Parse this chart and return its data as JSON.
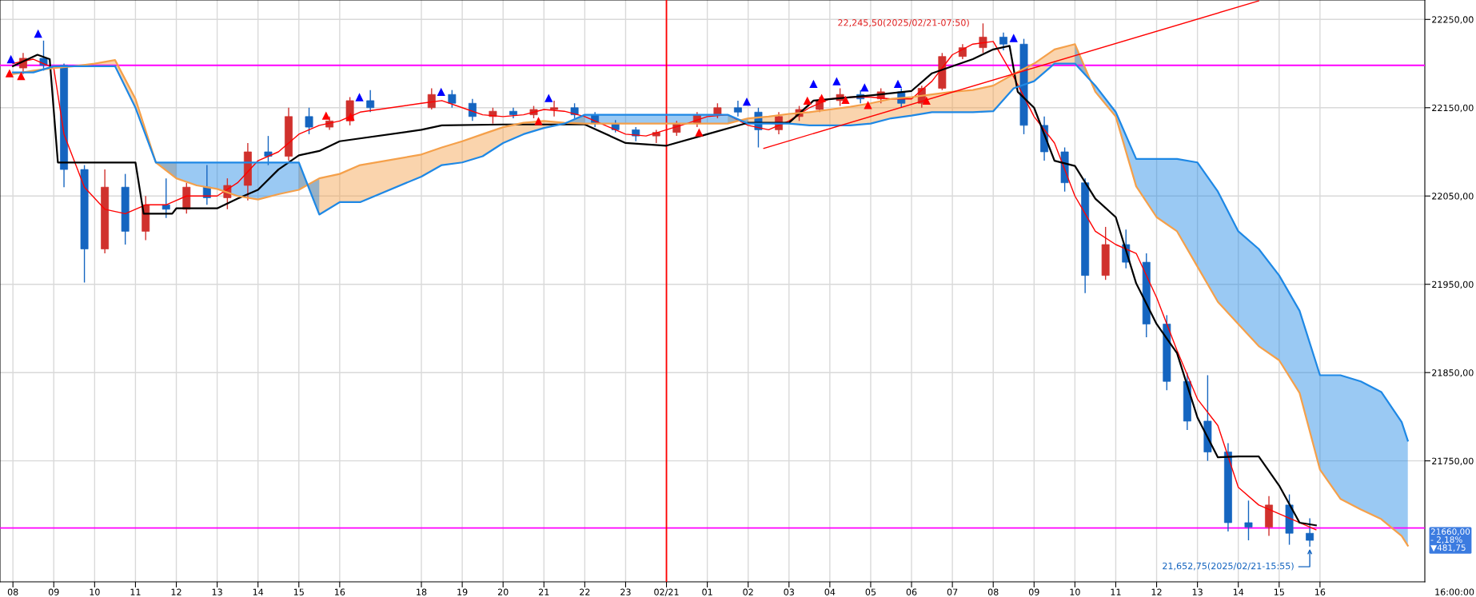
{
  "chart_data": {
    "type": "candlestick",
    "x": [
      "2025-02-20T08:15",
      "2025-02-20T08:45",
      "2025-02-20T09:15",
      "2025-02-20T09:45",
      "2025-02-20T10:15",
      "2025-02-20T10:45",
      "2025-02-20T11:15",
      "2025-02-20T11:45",
      "2025-02-20T12:15",
      "2025-02-20T12:45",
      "2025-02-20T13:15",
      "2025-02-20T13:45",
      "2025-02-20T14:15",
      "2025-02-20T14:45",
      "2025-02-20T15:15",
      "2025-02-20T15:45",
      "2025-02-20T16:15",
      "2025-02-20T16:45",
      "2025-02-20T18:15",
      "2025-02-20T18:45",
      "2025-02-20T19:15",
      "2025-02-20T19:45",
      "2025-02-20T20:15",
      "2025-02-20T20:45",
      "2025-02-20T21:15",
      "2025-02-20T21:45",
      "2025-02-20T22:15",
      "2025-02-20T22:45",
      "2025-02-20T23:15",
      "2025-02-20T23:45",
      "2025-02-21T00:15",
      "2025-02-21T00:45",
      "2025-02-21T01:15",
      "2025-02-21T01:45",
      "2025-02-21T02:15",
      "2025-02-21T02:45",
      "2025-02-21T03:15",
      "2025-02-21T03:45",
      "2025-02-21T04:15",
      "2025-02-21T04:45",
      "2025-02-21T05:15",
      "2025-02-21T05:45",
      "2025-02-21T06:15",
      "2025-02-21T06:45",
      "2025-02-21T07:15",
      "2025-02-21T07:45",
      "2025-02-21T08:15",
      "2025-02-21T08:45",
      "2025-02-21T09:15",
      "2025-02-21T09:45",
      "2025-02-21T10:15",
      "2025-02-21T10:45",
      "2025-02-21T11:15",
      "2025-02-21T11:45",
      "2025-02-21T12:15",
      "2025-02-21T12:45",
      "2025-02-21T13:15",
      "2025-02-21T13:45",
      "2025-02-21T14:15",
      "2025-02-21T14:45",
      "2025-02-21T15:15",
      "2025-02-21T15:45"
    ],
    "ohlc": [
      [
        22195,
        22212,
        22188,
        22206
      ],
      [
        22206,
        22226,
        22192,
        22198
      ],
      [
        22198,
        22200,
        22060,
        22080
      ],
      [
        22080,
        22085,
        21952,
        21990
      ],
      [
        21990,
        22080,
        21985,
        22060
      ],
      [
        22060,
        22075,
        21995,
        22010
      ],
      [
        22010,
        22050,
        22000,
        22040
      ],
      [
        22040,
        22070,
        22025,
        22035
      ],
      [
        22035,
        22065,
        22030,
        22060
      ],
      [
        22060,
        22085,
        22040,
        22048
      ],
      [
        22048,
        22070,
        22035,
        22062
      ],
      [
        22062,
        22110,
        22045,
        22100
      ],
      [
        22100,
        22118,
        22085,
        22095
      ],
      [
        22095,
        22150,
        22090,
        22140
      ],
      [
        22140,
        22150,
        22120,
        22128
      ],
      [
        22128,
        22140,
        22125,
        22135
      ],
      [
        22135,
        22162,
        22130,
        22158
      ],
      [
        22158,
        22170,
        22145,
        22150
      ],
      [
        22150,
        22172,
        22148,
        22165
      ],
      [
        22165,
        22170,
        22150,
        22155
      ],
      [
        22155,
        22160,
        22135,
        22140
      ],
      [
        22140,
        22150,
        22132,
        22146
      ],
      [
        22146,
        22150,
        22138,
        22142
      ],
      [
        22142,
        22152,
        22138,
        22148
      ],
      [
        22148,
        22158,
        22140,
        22150
      ],
      [
        22150,
        22155,
        22138,
        22142
      ],
      [
        22142,
        22145,
        22128,
        22132
      ],
      [
        22132,
        22136,
        22122,
        22125
      ],
      [
        22125,
        22128,
        22112,
        22118
      ],
      [
        22118,
        22125,
        22110,
        22122
      ],
      [
        22122,
        22135,
        22118,
        22132
      ],
      [
        22132,
        22145,
        22128,
        22142
      ],
      [
        22142,
        22155,
        22138,
        22150
      ],
      [
        22150,
        22158,
        22140,
        22145
      ],
      [
        22145,
        22150,
        22105,
        22125
      ],
      [
        22125,
        22145,
        22120,
        22140
      ],
      [
        22140,
        22152,
        22135,
        22148
      ],
      [
        22148,
        22162,
        22145,
        22158
      ],
      [
        22158,
        22172,
        22152,
        22165
      ],
      [
        22165,
        22170,
        22155,
        22160
      ],
      [
        22160,
        22172,
        22155,
        22168
      ],
      [
        22168,
        22172,
        22150,
        22155
      ],
      [
        22155,
        22175,
        22150,
        22172
      ],
      [
        22172,
        22212,
        22170,
        22208
      ],
      [
        22208,
        22222,
        22205,
        22218
      ],
      [
        22218,
        22245.5,
        22212,
        22230
      ],
      [
        22230,
        22235,
        22215,
        22222
      ],
      [
        22222,
        22228,
        22120,
        22130
      ],
      [
        22130,
        22140,
        22090,
        22100
      ],
      [
        22100,
        22105,
        22055,
        22065
      ],
      [
        22065,
        22070,
        21940,
        21960
      ],
      [
        21960,
        22015,
        21955,
        21995
      ],
      [
        21995,
        22012,
        21968,
        21975
      ],
      [
        21975,
        21985,
        21890,
        21905
      ],
      [
        21905,
        21915,
        21830,
        21840
      ],
      [
        21840,
        21850,
        21785,
        21795
      ],
      [
        21795,
        21847,
        21750,
        21760
      ],
      [
        21760,
        21770,
        21670,
        21680
      ],
      [
        21680,
        21705,
        21660,
        21675
      ],
      [
        21675,
        21710,
        21665,
        21700
      ],
      [
        21700,
        21712,
        21655,
        21668
      ],
      [
        21668,
        21685,
        21652.75,
        21660
      ]
    ],
    "colors": [
      "#d0312d",
      "#1565c0",
      "#1565c0",
      "#1565c0",
      "#d0312d",
      "#1565c0",
      "#d0312d",
      "#1565c0",
      "#d0312d",
      "#1565c0",
      "#d0312d",
      "#d0312d",
      "#1565c0",
      "#d0312d",
      "#1565c0",
      "#d0312d",
      "#d0312d",
      "#1565c0",
      "#d0312d",
      "#1565c0",
      "#1565c0",
      "#d0312d",
      "#1565c0",
      "#d0312d",
      "#d0312d",
      "#1565c0",
      "#1565c0",
      "#1565c0",
      "#1565c0",
      "#d0312d",
      "#d0312d",
      "#d0312d",
      "#d0312d",
      "#1565c0",
      "#1565c0",
      "#d0312d",
      "#d0312d",
      "#d0312d",
      "#d0312d",
      "#1565c0",
      "#d0312d",
      "#1565c0",
      "#d0312d",
      "#d0312d",
      "#d0312d",
      "#d0312d",
      "#1565c0",
      "#1565c0",
      "#1565c0",
      "#1565c0",
      "#1565c0",
      "#d0312d",
      "#1565c0",
      "#1565c0",
      "#1565c0",
      "#1565c0",
      "#1565c0",
      "#1565c0",
      "#1565c0",
      "#d0312d",
      "#1565c0",
      "#1565c0"
    ],
    "series": [
      {
        "type": "line",
        "color": "#ff0000",
        "x": [
          "2025-02-20T08:00",
          "2025-02-20T08:30",
          "2025-02-20T09:00",
          "2025-02-20T09:15",
          "2025-02-20T09:45",
          "2025-02-20T10:15",
          "2025-02-20T10:45",
          "2025-02-20T11:15",
          "2025-02-20T11:45",
          "2025-02-20T12:15",
          "2025-02-20T13:00",
          "2025-02-20T13:30",
          "2025-02-20T14:00",
          "2025-02-20T14:30",
          "2025-02-20T15:00",
          "2025-02-20T15:30",
          "2025-02-20T16:00",
          "2025-02-20T16:30",
          "2025-02-20T18:00",
          "2025-02-20T18:30",
          "2025-02-20T19:00",
          "2025-02-20T19:30",
          "2025-02-20T20:00",
          "2025-02-20T20:30",
          "2025-02-20T21:00",
          "2025-02-20T21:30",
          "2025-02-20T22:00",
          "2025-02-20T22:30",
          "2025-02-20T23:00",
          "2025-02-20T23:30",
          "2025-02-21T00:00",
          "2025-02-21T00:30",
          "2025-02-21T01:00",
          "2025-02-21T01:30",
          "2025-02-21T02:00",
          "2025-02-21T02:30",
          "2025-02-21T03:00",
          "2025-02-21T03:30",
          "2025-02-21T04:00",
          "2025-02-21T04:30",
          "2025-02-21T05:00",
          "2025-02-21T05:30",
          "2025-02-21T06:00",
          "2025-02-21T06:30",
          "2025-02-21T07:00",
          "2025-02-21T07:30",
          "2025-02-21T08:00",
          "2025-02-21T08:30",
          "2025-02-21T09:00",
          "2025-02-21T09:30",
          "2025-02-21T10:00",
          "2025-02-21T10:30",
          "2025-02-21T11:00",
          "2025-02-21T11:30",
          "2025-02-21T12:00",
          "2025-02-21T12:30",
          "2025-02-21T13:00",
          "2025-02-21T13:30",
          "2025-02-21T14:00",
          "2025-02-21T14:30",
          "2025-02-21T15:00",
          "2025-02-21T15:30",
          "2025-02-21T15:54"
        ],
        "values": [
          22200,
          22205,
          22195,
          22120,
          22060,
          22035,
          22030,
          22040,
          22040,
          22050,
          22050,
          22065,
          22090,
          22100,
          22120,
          22130,
          22135,
          22145,
          22155,
          22158,
          22150,
          22142,
          22140,
          22142,
          22148,
          22146,
          22140,
          22130,
          22120,
          22118,
          22125,
          22132,
          22140,
          22142,
          22130,
          22125,
          22135,
          22150,
          22160,
          22162,
          22162,
          22160,
          22160,
          22180,
          22210,
          22222,
          22225,
          22185,
          22140,
          22110,
          22050,
          22010,
          21995,
          21985,
          21935,
          21875,
          21820,
          21790,
          21720,
          21700,
          21690,
          21680,
          21672
        ]
      },
      {
        "type": "line",
        "color": "#000000",
        "x": [
          "2025-02-20T08:00",
          "2025-02-20T08:36",
          "2025-02-20T08:54",
          "2025-02-20T09:06",
          "2025-02-20T11:00",
          "2025-02-20T11:12",
          "2025-02-20T11:54",
          "2025-02-20T12:00",
          "2025-02-20T13:00",
          "2025-02-20T13:30",
          "2025-02-20T14:00",
          "2025-02-20T14:30",
          "2025-02-20T15:00",
          "2025-02-20T15:30",
          "2025-02-20T16:00",
          "2025-02-20T18:00",
          "2025-02-20T18:30",
          "2025-02-20T20:00",
          "2025-02-20T22:00",
          "2025-02-20T23:00",
          "2025-02-21T00:00",
          "2025-02-21T01:00",
          "2025-02-21T02:00",
          "2025-02-21T03:00",
          "2025-02-21T03:36",
          "2025-02-21T05:00",
          "2025-02-21T06:00",
          "2025-02-21T06:30",
          "2025-02-21T07:30",
          "2025-02-21T08:00",
          "2025-02-21T08:24",
          "2025-02-21T08:36",
          "2025-02-21T09:00",
          "2025-02-21T09:30",
          "2025-02-21T10:00",
          "2025-02-21T10:30",
          "2025-02-21T11:00",
          "2025-02-21T11:30",
          "2025-02-21T12:00",
          "2025-02-21T12:30",
          "2025-02-21T13:00",
          "2025-02-21T13:30",
          "2025-02-21T14:00",
          "2025-02-21T14:30",
          "2025-02-21T15:00",
          "2025-02-21T15:30",
          "2025-02-21T15:54"
        ],
        "values": [
          22197,
          22210,
          22205,
          22088,
          22088,
          22030,
          22030,
          22036,
          22036,
          22047,
          22057,
          22080,
          22096,
          22101,
          22112,
          22125,
          22130,
          22131,
          22131,
          22110,
          22107,
          22120,
          22133,
          22133,
          22158,
          22164,
          22169,
          22189,
          22205,
          22216,
          22220,
          22168,
          22150,
          22090,
          22084,
          22047,
          22026,
          21951,
          21905,
          21872,
          21799,
          21754,
          21755,
          21755,
          21722,
          21680,
          21677
        ]
      },
      {
        "type": "line",
        "color": "#f5a04a",
        "x": [
          "2025-02-20T08:00",
          "2025-02-20T08:30",
          "2025-02-20T09:00",
          "2025-02-20T09:30",
          "2025-02-20T10:00",
          "2025-02-20T10:30",
          "2025-02-20T11:00",
          "2025-02-20T11:30",
          "2025-02-20T12:00",
          "2025-02-20T12:30",
          "2025-02-20T13:00",
          "2025-02-20T13:30",
          "2025-02-20T14:00",
          "2025-02-20T14:30",
          "2025-02-20T15:00",
          "2025-02-20T15:30",
          "2025-02-20T16:00",
          "2025-02-20T16:30",
          "2025-02-20T18:00",
          "2025-02-20T18:30",
          "2025-02-20T19:00",
          "2025-02-20T19:30",
          "2025-02-20T20:00",
          "2025-02-20T20:30",
          "2025-02-20T21:00",
          "2025-02-20T21:30",
          "2025-02-20T22:00",
          "2025-02-20T22:30",
          "2025-02-20T23:00",
          "2025-02-20T23:30",
          "2025-02-21T00:00",
          "2025-02-21T00:30",
          "2025-02-21T01:00",
          "2025-02-21T01:30",
          "2025-02-21T02:00",
          "2025-02-21T02:30",
          "2025-02-21T03:00",
          "2025-02-21T03:30",
          "2025-02-21T04:00",
          "2025-02-21T04:30",
          "2025-02-21T05:00",
          "2025-02-21T05:30",
          "2025-02-21T06:00",
          "2025-02-21T06:30",
          "2025-02-21T07:00",
          "2025-02-21T07:30",
          "2025-02-21T08:00",
          "2025-02-21T08:30",
          "2025-02-21T09:00",
          "2025-02-21T09:30",
          "2025-02-21T10:00",
          "2025-02-21T10:30",
          "2025-02-21T11:00",
          "2025-02-21T11:30",
          "2025-02-21T12:00",
          "2025-02-21T12:30",
          "2025-02-21T13:00",
          "2025-02-21T13:30",
          "2025-02-21T14:00",
          "2025-02-21T14:30",
          "2025-02-21T15:00",
          "2025-02-21T15:30",
          "2025-02-21T16:00",
          "2025-02-21T16:30",
          "2025-02-21T17:00",
          "2025-02-21T17:30",
          "2025-02-21T18:00",
          "2025-02-21T18:09"
        ],
        "values": [
          22188,
          22192,
          22195,
          22197,
          22200,
          22204,
          22160,
          22088,
          22070,
          22062,
          22058,
          22050,
          22046,
          22052,
          22057,
          22070,
          22075,
          22085,
          22097,
          22105,
          22112,
          22120,
          22128,
          22133,
          22135,
          22133,
          22132,
          22132,
          22132,
          22132,
          22132,
          22132,
          22132,
          22132,
          22138,
          22140,
          22143,
          22145,
          22148,
          22151,
          22155,
          22160,
          22162,
          22165,
          22168,
          22170,
          22175,
          22188,
          22200,
          22216,
          22222,
          22168,
          22140,
          22061,
          22026,
          22010,
          21970,
          21930,
          21905,
          21880,
          21864,
          21827,
          21740,
          21707,
          21695,
          21684,
          21665,
          21654
        ],
        "upper": [
          22188,
          22192,
          22195,
          22197,
          22200,
          22204,
          22160,
          22088,
          22070,
          null,
          null,
          null,
          null,
          null,
          22057,
          22070,
          22075,
          22085,
          22097,
          22105,
          22112,
          22120,
          22128,
          22133,
          22135,
          22133,
          22132,
          null,
          null,
          null,
          null,
          null,
          null,
          22132,
          22138,
          22140,
          22143,
          22145,
          22148,
          22151,
          22155,
          22160,
          22162,
          22165,
          22168,
          22170,
          22175,
          22188,
          22200,
          22216,
          22222,
          22168,
          null,
          null,
          null,
          null,
          null,
          null,
          null,
          null,
          null,
          null,
          null,
          null,
          null,
          null,
          null,
          null
        ],
        "lower": [
          22190,
          22190,
          22197,
          22197,
          22197,
          22197,
          22150,
          22088,
          22088,
          null,
          null,
          null,
          null,
          null,
          22088,
          22029,
          22043,
          22043,
          22072,
          22085,
          22088,
          22095,
          22110,
          22120,
          22127,
          22132,
          22142,
          null,
          null,
          null,
          null,
          null,
          null,
          22142,
          22132,
          22132,
          22132,
          22130,
          22130,
          22130,
          22132,
          22138,
          22141,
          22145,
          22145,
          22145,
          22146,
          22172,
          22180,
          22200,
          22200,
          22175,
          null,
          null,
          null,
          null,
          null,
          null,
          null,
          null,
          null,
          null,
          null,
          null,
          null,
          null,
          null,
          null
        ]
      },
      {
        "type": "line",
        "color": "#1e88e5",
        "x": [
          "2025-02-20T08:00",
          "2025-02-20T08:30",
          "2025-02-20T09:00",
          "2025-02-20T09:30",
          "2025-02-20T10:00",
          "2025-02-20T10:30",
          "2025-02-20T11:00",
          "2025-02-20T11:30",
          "2025-02-20T12:00",
          "2025-02-20T12:30",
          "2025-02-20T13:00",
          "2025-02-20T13:30",
          "2025-02-20T14:00",
          "2025-02-20T14:30",
          "2025-02-20T15:00",
          "2025-02-20T15:30",
          "2025-02-20T16:00",
          "2025-02-20T16:30",
          "2025-02-20T18:00",
          "2025-02-20T18:30",
          "2025-02-20T19:00",
          "2025-02-20T19:30",
          "2025-02-20T20:00",
          "2025-02-20T20:30",
          "2025-02-20T21:00",
          "2025-02-20T21:30",
          "2025-02-20T22:00",
          "2025-02-20T22:30",
          "2025-02-20T23:00",
          "2025-02-20T23:30",
          "2025-02-21T00:00",
          "2025-02-21T00:30",
          "2025-02-21T01:00",
          "2025-02-21T01:30",
          "2025-02-21T02:00",
          "2025-02-21T02:30",
          "2025-02-21T03:00",
          "2025-02-21T03:30",
          "2025-02-21T04:00",
          "2025-02-21T04:30",
          "2025-02-21T05:00",
          "2025-02-21T05:30",
          "2025-02-21T06:00",
          "2025-02-21T06:30",
          "2025-02-21T07:00",
          "2025-02-21T07:30",
          "2025-02-21T08:00",
          "2025-02-21T08:30",
          "2025-02-21T09:00",
          "2025-02-21T09:30",
          "2025-02-21T10:00",
          "2025-02-21T10:30",
          "2025-02-21T11:00",
          "2025-02-21T11:30",
          "2025-02-21T12:00",
          "2025-02-21T12:30",
          "2025-02-21T13:00",
          "2025-02-21T13:30",
          "2025-02-21T14:00",
          "2025-02-21T14:30",
          "2025-02-21T15:00",
          "2025-02-21T15:30",
          "2025-02-21T16:00",
          "2025-02-21T16:30",
          "2025-02-21T17:00",
          "2025-02-21T17:30",
          "2025-02-21T18:00",
          "2025-02-21T18:09"
        ],
        "values": [
          22190,
          22190,
          22197,
          22197,
          22197,
          22197,
          22150,
          22088,
          22088,
          22088,
          22088,
          22088,
          22088,
          22088,
          22088,
          22029,
          22043,
          22043,
          22072,
          22085,
          22088,
          22095,
          22110,
          22120,
          22127,
          22132,
          22142,
          22142,
          22142,
          22142,
          22142,
          22142,
          22142,
          22142,
          22132,
          22132,
          22132,
          22130,
          22130,
          22130,
          22132,
          22138,
          22141,
          22145,
          22145,
          22145,
          22146,
          22172,
          22180,
          22200,
          22200,
          22175,
          22145,
          22092,
          22092,
          22092,
          22088,
          22055,
          22010,
          21990,
          21960,
          21920,
          21847,
          21847,
          21840,
          21828,
          21794,
          21773
        ],
        "upper": [
          22190,
          22190,
          22197,
          22197,
          null,
          null,
          null,
          22088,
          22088,
          22088,
          22088,
          22088,
          22088,
          22088,
          22088,
          22029,
          null,
          null,
          null,
          null,
          null,
          null,
          null,
          null,
          null,
          22132,
          22142,
          22142,
          22142,
          22142,
          22142,
          22142,
          22142,
          22142,
          22132,
          null,
          null,
          null,
          null,
          null,
          null,
          null,
          null,
          null,
          null,
          null,
          null,
          null,
          null,
          null,
          22200,
          22175,
          22145,
          22092,
          22092,
          22092,
          22088,
          22055,
          22010,
          21990,
          21960,
          21920,
          21847,
          21847,
          21840,
          21828,
          21794,
          21773
        ],
        "lower": [
          22188,
          22192,
          22195,
          22197,
          null,
          null,
          null,
          22088,
          22070,
          22062,
          22058,
          22050,
          22046,
          22052,
          22057,
          22070,
          null,
          null,
          null,
          null,
          null,
          null,
          null,
          null,
          null,
          22133,
          22132,
          22132,
          22132,
          22132,
          22132,
          22132,
          22132,
          22132,
          22138,
          null,
          null,
          null,
          null,
          null,
          null,
          null,
          null,
          null,
          null,
          null,
          null,
          null,
          null,
          null,
          22222,
          22168,
          22140,
          22061,
          22026,
          22010,
          21970,
          21930,
          21905,
          21880,
          21864,
          21827,
          21740,
          21707,
          21695,
          21684,
          21665,
          21654
        ]
      },
      {
        "type": "line",
        "color": "#ff0000",
        "x": [
          "2025-02-21T02:23",
          "2025-02-21T14:30"
        ],
        "values": [
          22104,
          22271
        ]
      },
      {
        "type": "scatter",
        "color": "#ff0000",
        "marker": "triangle",
        "x": [
          "2025-02-20T07:55",
          "2025-02-20T08:12",
          "2025-02-20T15:40",
          "2025-02-20T16:16",
          "2025-02-20T20:52",
          "2025-02-21T00:48",
          "2025-02-21T03:27",
          "2025-02-21T03:48",
          "2025-02-21T04:23",
          "2025-02-21T04:56",
          "2025-02-21T06:22"
        ],
        "values": [
          22189,
          22186,
          22141,
          22140,
          22135,
          22122,
          22158,
          22161,
          22159,
          22153,
          22158
        ]
      },
      {
        "type": "scatter",
        "color": "#0000ff",
        "marker": "triangle",
        "x": [
          "2025-02-20T07:57",
          "2025-02-20T08:37",
          "2025-02-20T16:29",
          "2025-02-20T18:29",
          "2025-02-20T21:07",
          "2025-02-21T01:58",
          "2025-02-21T03:36",
          "2025-02-21T04:10",
          "2025-02-21T04:51",
          "2025-02-21T05:40",
          "2025-02-21T08:30"
        ],
        "values": [
          22205,
          22234,
          22162,
          22168,
          22161,
          22157,
          22177,
          22180,
          22173,
          22177,
          22229
        ]
      }
    ],
    "xlim": [
      "2025-02-20T07:41",
      "2025-02-21T18:34"
    ],
    "xticks": [
      {
        "value": "2025-02-20T08:00",
        "label": "08"
      },
      {
        "value": "2025-02-20T09:00",
        "label": "09"
      },
      {
        "value": "2025-02-20T10:00",
        "label": "10"
      },
      {
        "value": "2025-02-20T11:00",
        "label": "11"
      },
      {
        "value": "2025-02-20T12:00",
        "label": "12"
      },
      {
        "value": "2025-02-20T13:00",
        "label": "13"
      },
      {
        "value": "2025-02-20T14:00",
        "label": "14"
      },
      {
        "value": "2025-02-20T15:00",
        "label": "15"
      },
      {
        "value": "2025-02-20T16:00",
        "label": "16"
      },
      {
        "value": "2025-02-20T18:00",
        "label": "18"
      },
      {
        "value": "2025-02-20T19:00",
        "label": "19"
      },
      {
        "value": "2025-02-20T20:00",
        "label": "20"
      },
      {
        "value": "2025-02-20T21:00",
        "label": "21"
      },
      {
        "value": "2025-02-20T22:00",
        "label": "22"
      },
      {
        "value": "2025-02-20T23:00",
        "label": "23"
      },
      {
        "value": "2025-02-21T00:00",
        "label": "02/21"
      },
      {
        "value": "2025-02-21T01:00",
        "label": "01"
      },
      {
        "value": "2025-02-21T02:00",
        "label": "02"
      },
      {
        "value": "2025-02-21T03:00",
        "label": "03"
      },
      {
        "value": "2025-02-21T04:00",
        "label": "04"
      },
      {
        "value": "2025-02-21T05:00",
        "label": "05"
      },
      {
        "value": "2025-02-21T06:00",
        "label": "06"
      },
      {
        "value": "2025-02-21T07:00",
        "label": "07"
      },
      {
        "value": "2025-02-21T08:00",
        "label": "08"
      },
      {
        "value": "2025-02-21T09:00",
        "label": "09"
      },
      {
        "value": "2025-02-21T10:00",
        "label": "10"
      },
      {
        "value": "2025-02-21T11:00",
        "label": "11"
      },
      {
        "value": "2025-02-21T12:00",
        "label": "12"
      },
      {
        "value": "2025-02-21T13:00",
        "label": "13"
      },
      {
        "value": "2025-02-21T14:00",
        "label": "14"
      },
      {
        "value": "2025-02-21T15:00",
        "label": "15"
      },
      {
        "value": "2025-02-21T16:00",
        "label": "16"
      }
    ],
    "ylim": [
      21613,
      22272
    ],
    "yticks": [
      {
        "value": 21750,
        "label": "21750,00"
      },
      {
        "value": 21850,
        "label": "21850,00"
      },
      {
        "value": 21950,
        "label": "21950,00"
      },
      {
        "value": 22050,
        "label": "22050,00"
      },
      {
        "value": 22150,
        "label": "22150,00"
      },
      {
        "value": 22250,
        "label": "22250,00"
      }
    ],
    "grid": true,
    "ref_lines": [
      {
        "axis": "y",
        "value": 22198,
        "color": "#ff00ff"
      },
      {
        "axis": "y",
        "value": 21674,
        "color": "#ff00ff"
      },
      {
        "axis": "x",
        "value": "2025-02-21T00:00",
        "color": "#ff0000"
      }
    ],
    "annotations": [
      {
        "text": "22,245,50(2025/02/21-07:50)",
        "x": "2025-02-21T07:45",
        "y": 22245.5
      },
      "21,652,75(2025/02/21-15:55)",
      "21660,00\n- 2,18%\n▼481,75"
    ],
    "xlabel": "16:00:00"
  }
}
